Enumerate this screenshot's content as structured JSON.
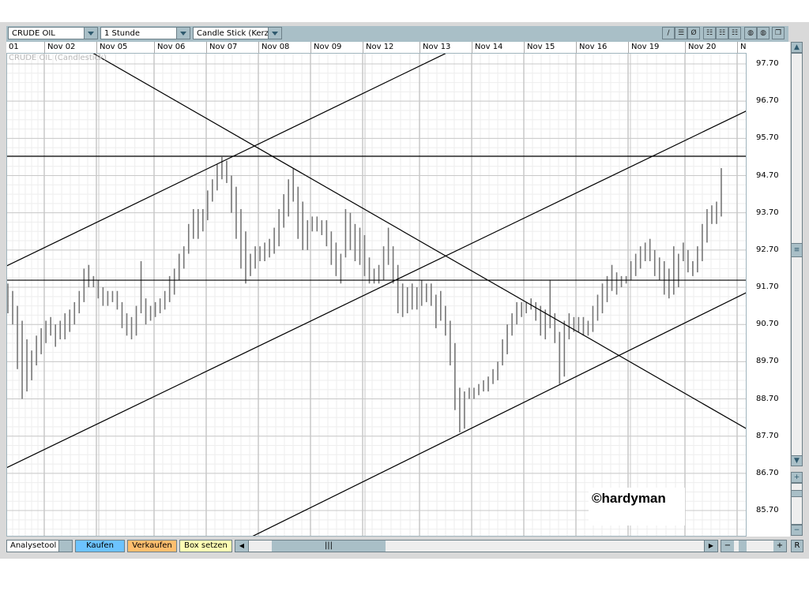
{
  "toolbar": {
    "instrument": "CRUDE OIL",
    "interval": "1 Stunde",
    "chart_type": "Candle Stick (Kerze",
    "tools": [
      {
        "icon": "line-tool-icon",
        "glyph": "/"
      },
      {
        "icon": "channel-tool-icon",
        "glyph": "☰"
      },
      {
        "icon": "delete-icon",
        "glyph": "Ø"
      },
      {
        "icon": "grid-1-icon",
        "glyph": "☷"
      },
      {
        "icon": "grid-2-icon",
        "glyph": "☷"
      },
      {
        "icon": "grid-3-icon",
        "glyph": "☷"
      },
      {
        "icon": "color-1-icon",
        "glyph": "◍"
      },
      {
        "icon": "color-2-icon",
        "glyph": "◍"
      },
      {
        "icon": "window-icon",
        "glyph": "❐"
      }
    ]
  },
  "series_label": "CRUDE OIL (Candlestick)",
  "watermark": "©hardyman",
  "bottom": {
    "analysetool": "Analysetool",
    "kaufen": "Kaufen",
    "verkaufen": "Verkaufen",
    "box_setzen": "Box setzen",
    "minus": "−",
    "plus": "+",
    "reset": "R",
    "kaufen_color": "#6cc3ff",
    "verkaufen_color": "#ffbe6e",
    "box_color": "#ffffb4"
  },
  "chart_data": {
    "type": "candlestick",
    "x_labels": [
      "01",
      "Nov 02",
      "Nov 05",
      "Nov 06",
      "Nov 07",
      "Nov 08",
      "Nov 09",
      "Nov 12",
      "Nov 13",
      "Nov 14",
      "Nov 15",
      "Nov 16",
      "Nov 19",
      "Nov 20",
      "No"
    ],
    "y_ticks": [
      "97.70",
      "96.70",
      "95.70",
      "94.70",
      "93.70",
      "92.70",
      "91.70",
      "90.70",
      "89.70",
      "88.70",
      "87.70",
      "86.70",
      "85.70"
    ],
    "ylim": [
      85.0,
      98.0
    ],
    "grid": true,
    "bar_color": "#777777",
    "bars": [
      [
        91.8,
        91.0
      ],
      [
        91.6,
        90.7
      ],
      [
        91.2,
        89.5
      ],
      [
        90.8,
        88.7
      ],
      [
        90.3,
        88.9
      ],
      [
        90.0,
        89.2
      ],
      [
        90.4,
        89.6
      ],
      [
        90.6,
        89.9
      ],
      [
        90.8,
        90.2
      ],
      [
        90.9,
        90.4
      ],
      [
        90.7,
        90.1
      ],
      [
        90.8,
        90.3
      ],
      [
        91.0,
        90.3
      ],
      [
        91.1,
        90.5
      ],
      [
        91.3,
        90.7
      ],
      [
        91.6,
        91.0
      ],
      [
        92.2,
        91.3
      ],
      [
        92.3,
        91.7
      ],
      [
        92.0,
        91.7
      ],
      [
        91.9,
        91.4
      ],
      [
        91.7,
        91.2
      ],
      [
        91.6,
        91.2
      ],
      [
        91.6,
        91.3
      ],
      [
        91.6,
        91.1
      ],
      [
        91.3,
        90.6
      ],
      [
        91.0,
        90.4
      ],
      [
        90.9,
        90.3
      ],
      [
        91.2,
        90.4
      ],
      [
        92.4,
        91.0
      ],
      [
        91.4,
        90.7
      ],
      [
        91.2,
        90.8
      ],
      [
        91.3,
        90.9
      ],
      [
        91.4,
        91.0
      ],
      [
        91.6,
        91.1
      ],
      [
        92.0,
        91.3
      ],
      [
        92.2,
        91.5
      ],
      [
        92.6,
        91.9
      ],
      [
        92.8,
        92.2
      ],
      [
        93.4,
        92.6
      ],
      [
        93.8,
        93.0
      ],
      [
        93.8,
        93.0
      ],
      [
        93.8,
        93.2
      ],
      [
        94.3,
        93.5
      ],
      [
        94.6,
        94.0
      ],
      [
        95.0,
        94.3
      ],
      [
        95.2,
        94.6
      ],
      [
        95.1,
        94.5
      ],
      [
        94.7,
        93.7
      ],
      [
        94.4,
        93.0
      ],
      [
        93.8,
        92.2
      ],
      [
        93.2,
        91.8
      ],
      [
        92.6,
        92.0
      ],
      [
        92.8,
        92.2
      ],
      [
        92.8,
        92.4
      ],
      [
        92.9,
        92.4
      ],
      [
        93.0,
        92.5
      ],
      [
        93.3,
        92.6
      ],
      [
        93.8,
        92.8
      ],
      [
        94.2,
        93.3
      ],
      [
        94.6,
        93.6
      ],
      [
        94.9,
        94.0
      ],
      [
        94.4,
        93.0
      ],
      [
        94.0,
        92.7
      ],
      [
        93.5,
        92.7
      ],
      [
        93.6,
        93.2
      ],
      [
        93.6,
        93.2
      ],
      [
        93.5,
        93.1
      ],
      [
        93.5,
        92.8
      ],
      [
        93.2,
        92.3
      ],
      [
        92.9,
        92.0
      ],
      [
        92.6,
        91.8
      ],
      [
        93.8,
        92.5
      ],
      [
        93.7,
        92.7
      ],
      [
        93.4,
        92.4
      ],
      [
        93.3,
        92.3
      ],
      [
        93.1,
        92.0
      ],
      [
        92.5,
        91.8
      ],
      [
        92.2,
        91.8
      ],
      [
        92.3,
        91.8
      ],
      [
        92.8,
        91.9
      ],
      [
        93.3,
        92.3
      ],
      [
        92.8,
        91.8
      ],
      [
        92.3,
        91.0
      ],
      [
        91.8,
        90.9
      ],
      [
        91.7,
        91.0
      ],
      [
        91.8,
        91.1
      ],
      [
        91.7,
        91.1
      ],
      [
        91.9,
        91.2
      ],
      [
        91.8,
        91.3
      ],
      [
        91.8,
        91.2
      ],
      [
        91.5,
        90.6
      ],
      [
        91.6,
        90.8
      ],
      [
        91.2,
        90.4
      ],
      [
        90.8,
        89.6
      ],
      [
        90.2,
        88.4
      ],
      [
        89.0,
        87.8
      ],
      [
        88.9,
        87.9
      ],
      [
        89.0,
        88.7
      ],
      [
        89.0,
        88.7
      ],
      [
        89.1,
        88.8
      ],
      [
        89.2,
        88.9
      ],
      [
        89.3,
        88.9
      ],
      [
        89.5,
        89.1
      ],
      [
        89.7,
        89.2
      ],
      [
        90.3,
        89.6
      ],
      [
        90.7,
        89.9
      ],
      [
        91.0,
        90.4
      ],
      [
        91.3,
        90.7
      ],
      [
        91.3,
        90.9
      ],
      [
        91.3,
        91.0
      ],
      [
        91.4,
        91.1
      ],
      [
        91.3,
        90.8
      ],
      [
        91.2,
        90.4
      ],
      [
        91.1,
        90.3
      ],
      [
        91.9,
        90.6
      ],
      [
        91.0,
        90.2
      ],
      [
        90.5,
        89.1
      ],
      [
        90.8,
        89.3
      ],
      [
        91.0,
        90.3
      ],
      [
        90.9,
        90.5
      ],
      [
        90.9,
        90.5
      ],
      [
        90.9,
        90.4
      ],
      [
        90.8,
        90.4
      ],
      [
        91.2,
        90.5
      ],
      [
        91.5,
        90.8
      ],
      [
        91.8,
        91.0
      ],
      [
        92.0,
        91.3
      ],
      [
        92.3,
        91.6
      ],
      [
        92.1,
        91.5
      ],
      [
        92.0,
        91.7
      ],
      [
        92.0,
        91.8
      ],
      [
        92.4,
        91.9
      ],
      [
        92.6,
        92.0
      ],
      [
        92.8,
        92.2
      ],
      [
        92.9,
        92.4
      ],
      [
        93.0,
        92.4
      ],
      [
        92.7,
        92.0
      ],
      [
        92.5,
        91.9
      ],
      [
        92.4,
        91.5
      ],
      [
        92.2,
        91.4
      ],
      [
        92.8,
        91.5
      ],
      [
        92.6,
        91.7
      ],
      [
        92.9,
        92.4
      ],
      [
        92.7,
        92.1
      ],
      [
        92.4,
        92.0
      ],
      [
        92.8,
        92.1
      ],
      [
        93.4,
        92.4
      ],
      [
        93.8,
        92.9
      ],
      [
        93.9,
        93.4
      ],
      [
        94.0,
        93.4
      ],
      [
        94.9,
        93.6
      ]
    ],
    "lines": [
      {
        "name": "resistance",
        "from": {
          "bar": -0.3,
          "price": 95.22
        },
        "to": {
          "bar": 155.8,
          "price": 95.22
        }
      },
      {
        "name": "support",
        "from": {
          "bar": -0.3,
          "price": 91.89
        },
        "to": {
          "bar": 155.8,
          "price": 91.89
        }
      },
      {
        "name": "upper-channel",
        "from": {
          "bar": -0.3,
          "price": 92.27
        },
        "to": {
          "bar": 92,
          "price": 97.98
        }
      },
      {
        "name": "downtrend",
        "from": {
          "bar": 18,
          "price": 97.98
        },
        "to": {
          "bar": 155.8,
          "price": 87.86
        }
      },
      {
        "name": "middle-channel",
        "from": {
          "bar": -0.3,
          "price": 86.85
        },
        "to": {
          "bar": 155.8,
          "price": 96.47
        }
      },
      {
        "name": "lower-channel",
        "from": {
          "bar": 51.3,
          "price": 85.0
        },
        "to": {
          "bar": 155.8,
          "price": 91.59
        }
      }
    ]
  }
}
